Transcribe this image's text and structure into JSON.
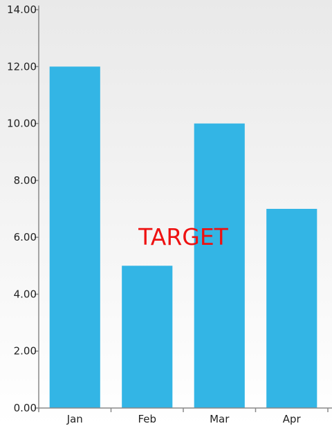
{
  "colors": {
    "bar": "#33b5e5",
    "annotation": "#ee1111",
    "axis": "#888888"
  },
  "chart_data": {
    "type": "bar",
    "categories": [
      "Jan",
      "Feb",
      "Mar",
      "Apr"
    ],
    "values": [
      12,
      5,
      10,
      7
    ],
    "title": "",
    "xlabel": "",
    "ylabel": "",
    "ylim": [
      0,
      14
    ],
    "yticks": [
      "0.00",
      "2.00",
      "4.00",
      "6.00",
      "8.00",
      "10.00",
      "12.00",
      "14.00"
    ],
    "grid": false,
    "annotations": [
      {
        "text": "TARGET",
        "x": 1.5,
        "y": 6
      }
    ]
  }
}
